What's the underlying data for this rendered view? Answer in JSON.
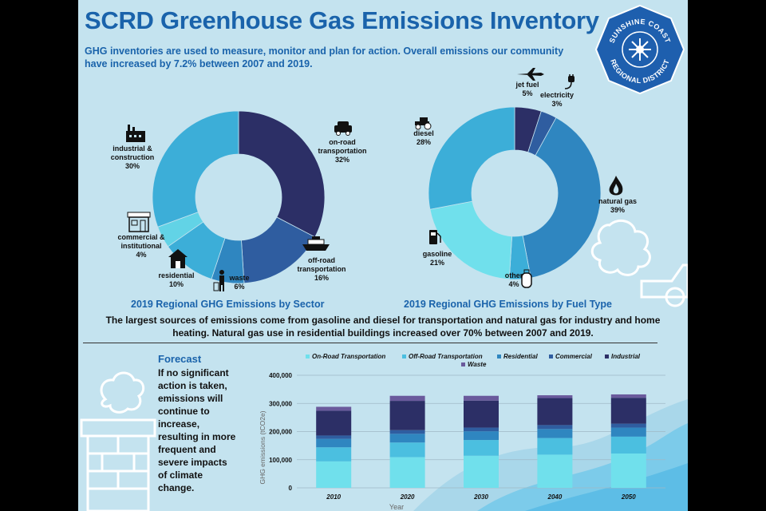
{
  "header": {
    "title": "SCRD Greenhouse Gas Emissions Inventory",
    "intro": "GHG inventories are used to measure, monitor and plan for action. Overall emissions our community have increased by 7.2% between 2007 and 2019."
  },
  "seal": {
    "line_top": "SUNSHINE COAST",
    "line_bottom": "REGIONAL DISTRICT"
  },
  "summary": "The largest sources of emissions come from gasoline and diesel for transportation and natural gas for industry and home heating. Natural gas use in residential buildings increased over 70% between 2007 and 2019.",
  "forecast": {
    "heading": "Forecast",
    "body": "If no significant action is taken, emissions will continue to increase, resulting in more frequent and severe impacts of climate change."
  },
  "colors": {
    "navy": "#2c2f66",
    "blue_dark": "#2f5da0",
    "blue_mid": "#2f86c0",
    "blue_light": "#3caed8",
    "cyan": "#62d3e6",
    "pale_cyan": "#70e0ec",
    "purple": "#6a5a9c",
    "title_blue": "#1a63ab"
  },
  "chart_data": [
    {
      "type": "pie",
      "title": "2019 Regional GHG Emissions by Sector",
      "slices": [
        {
          "label": "on-road transportation",
          "value": 32,
          "value_label": "32%",
          "color": "#2c2f66"
        },
        {
          "label": "off-road transportation",
          "value": 16,
          "value_label": "16%",
          "color": "#2f5da0"
        },
        {
          "label": "waste",
          "value": 6,
          "value_label": "6%",
          "color": "#2f86c0"
        },
        {
          "label": "residential",
          "value": 10,
          "value_label": "10%",
          "color": "#3caed8"
        },
        {
          "label": "commercial & institutional",
          "value": 4,
          "value_label": "4%",
          "color": "#62d3e6"
        },
        {
          "label": "industrial & construction",
          "value": 30,
          "value_label": "30%",
          "color": "#3caed8"
        }
      ]
    },
    {
      "type": "pie",
      "title": "2019 Regional GHG Emissions by Fuel Type",
      "slices": [
        {
          "label": "jet fuel",
          "value": 5,
          "value_label": "5%",
          "color": "#2c2f66"
        },
        {
          "label": "electricity",
          "value": 3,
          "value_label": "3%",
          "color": "#2f5da0"
        },
        {
          "label": "natural gas",
          "value": 39,
          "value_label": "39%",
          "color": "#2f86c0"
        },
        {
          "label": "other",
          "value": 4,
          "value_label": "4%",
          "color": "#3caed8"
        },
        {
          "label": "gasoline",
          "value": 21,
          "value_label": "21%",
          "color": "#70e0ec"
        },
        {
          "label": "diesel",
          "value": 28,
          "value_label": "28%",
          "color": "#3caed8"
        }
      ]
    },
    {
      "type": "bar",
      "stacked": true,
      "categories": [
        "2010",
        "2020",
        "2030",
        "2040",
        "2050"
      ],
      "xlabel": "Year",
      "ylabel": "GHG emissions (tCO2e)",
      "ylim": [
        0,
        400000
      ],
      "yticks": [
        0,
        100000,
        200000,
        300000,
        400000
      ],
      "ytick_labels": [
        "0",
        "100,000",
        "200,000",
        "300,000",
        "400,000"
      ],
      "grid": true,
      "legend": "top",
      "series": [
        {
          "name": "On-Road Transportation",
          "color": "#70e0ec",
          "values": [
            94000,
            109000,
            114000,
            118000,
            122000
          ]
        },
        {
          "name": "Off-Road Transportation",
          "color": "#4bbfe0",
          "values": [
            50000,
            52000,
            56000,
            59000,
            60000
          ]
        },
        {
          "name": "Residential",
          "color": "#2f86c0",
          "values": [
            30000,
            31000,
            31000,
            32000,
            32000
          ]
        },
        {
          "name": "Commercial",
          "color": "#2f5da0",
          "values": [
            12000,
            13000,
            13000,
            14000,
            14000
          ]
        },
        {
          "name": "Industrial",
          "color": "#2c2f66",
          "values": [
            88000,
            104000,
            96000,
            96000,
            92000
          ]
        },
        {
          "name": "Waste",
          "color": "#6a5a9c",
          "values": [
            14000,
            18000,
            17000,
            10000,
            12000
          ]
        }
      ]
    }
  ]
}
